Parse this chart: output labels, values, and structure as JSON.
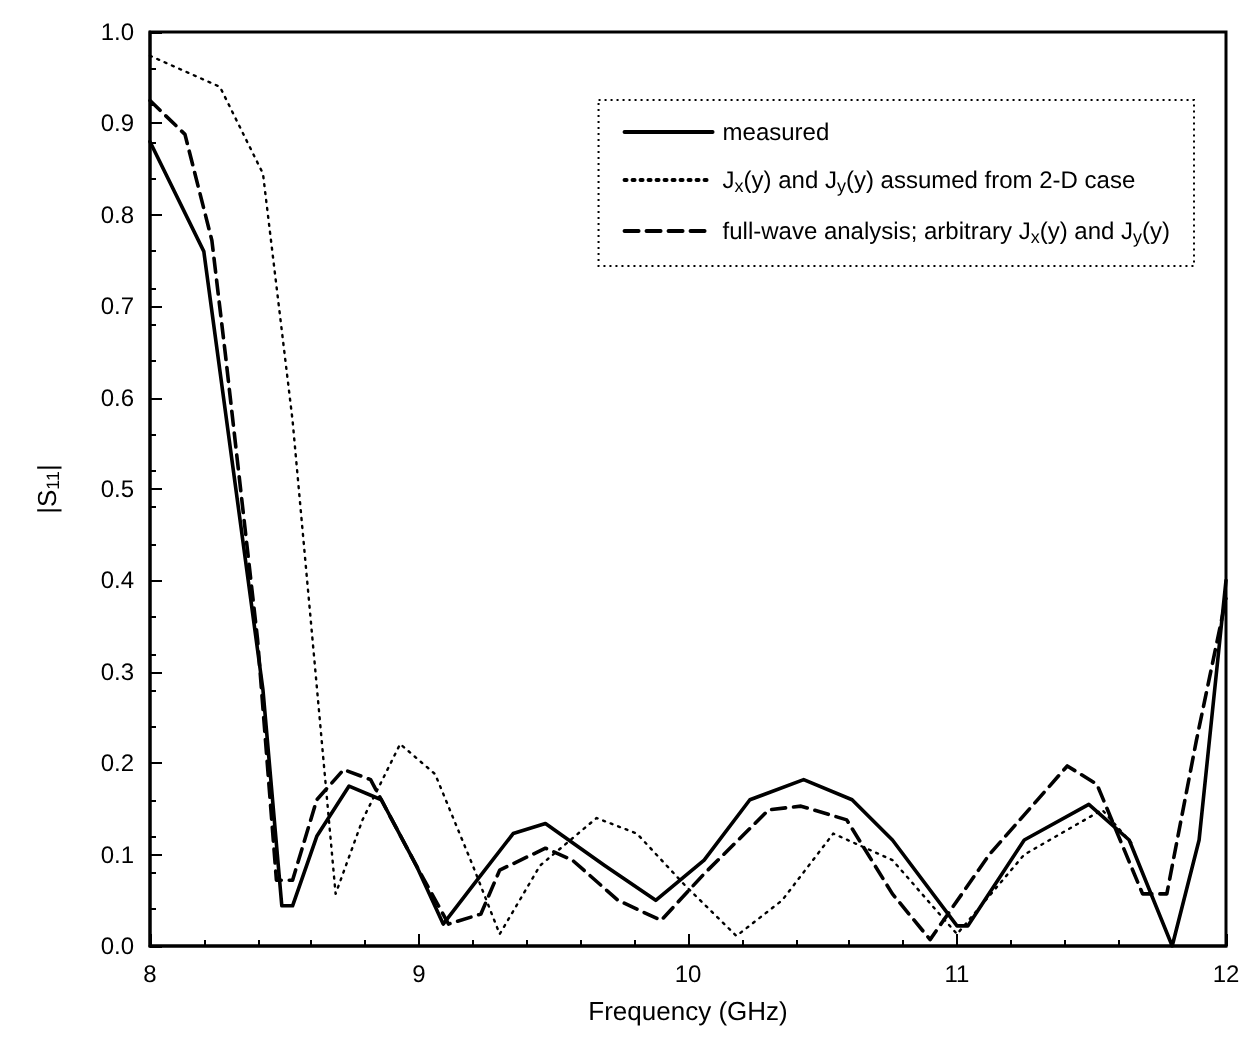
{
  "chart_data": {
    "type": "line",
    "xlabel": "Frequency (GHz)",
    "ylabel": "|S$_{11}$|",
    "xlim": [
      8,
      12
    ],
    "xticks": [
      8,
      9,
      10,
      11,
      12
    ],
    "ylim": [
      0,
      1
    ],
    "yticks": [
      {
        "value": 0,
        "label": "0.0"
      },
      0.1,
      0.2,
      0.3,
      0.4,
      0.5,
      0.6,
      0.7,
      0.8,
      0.9,
      {
        "value": 1,
        "label": "1.0"
      }
    ],
    "grid": false,
    "legend": "top right",
    "marker": "none",
    "series": [
      {
        "name": "measured",
        "color": "#000000",
        "line_style": "solid",
        "x": [
          8.0,
          8.2,
          8.31,
          8.42,
          8.49,
          8.53,
          8.62,
          8.74,
          8.86,
          8.99,
          9.09,
          9.2,
          9.35,
          9.47,
          9.69,
          9.88,
          10.06,
          10.23,
          10.43,
          10.61,
          10.76,
          11.0,
          11.04,
          11.25,
          11.49,
          11.64,
          11.8,
          11.9,
          12.0
        ],
        "values": [
          0.88,
          0.76,
          0.52,
          0.28,
          0.044,
          0.044,
          0.12,
          0.175,
          0.16,
          0.088,
          0.024,
          0.066,
          0.123,
          0.134,
          0.088,
          0.05,
          0.094,
          0.16,
          0.182,
          0.16,
          0.116,
          0.022,
          0.022,
          0.116,
          0.155,
          0.116,
          0.0,
          0.116,
          0.4
        ]
      },
      {
        "name": "J$_{x}$(y) and J$_{y}$(y) assumed from 2-D case",
        "color": "#000000",
        "line_style": "dotted",
        "x": [
          8.0,
          8.26,
          8.42,
          8.53,
          8.62,
          8.69,
          8.79,
          8.93,
          9.06,
          9.2,
          9.3,
          9.45,
          9.66,
          9.81,
          9.99,
          10.18,
          10.35,
          10.54,
          10.76,
          11.0,
          11.25,
          11.54,
          11.66
        ],
        "values": [
          0.974,
          0.94,
          0.845,
          0.575,
          0.284,
          0.057,
          0.138,
          0.221,
          0.188,
          0.088,
          0.013,
          0.088,
          0.14,
          0.123,
          0.066,
          0.011,
          0.05,
          0.123,
          0.094,
          0.013,
          0.1,
          0.149,
          0.109
        ]
      },
      {
        "name": "full-wave analysis; arbitrary J$_{x}$(y) and J$_{y}$(y)",
        "color": "#000000",
        "line_style": "dashed",
        "x": [
          8.0,
          8.13,
          8.23,
          8.28,
          8.4,
          8.47,
          8.53,
          8.62,
          8.72,
          8.82,
          8.99,
          9.11,
          9.23,
          9.3,
          9.47,
          9.57,
          9.74,
          9.9,
          10.06,
          10.3,
          10.42,
          10.59,
          10.76,
          10.9,
          11.12,
          11.41,
          11.52,
          11.69,
          11.78,
          11.89,
          12.0
        ],
        "values": [
          0.925,
          0.888,
          0.772,
          0.648,
          0.335,
          0.072,
          0.072,
          0.16,
          0.193,
          0.182,
          0.088,
          0.024,
          0.035,
          0.083,
          0.107,
          0.094,
          0.05,
          0.028,
          0.079,
          0.149,
          0.153,
          0.138,
          0.057,
          0.007,
          0.1,
          0.197,
          0.177,
          0.057,
          0.057,
          0.225,
          0.38
        ]
      }
    ]
  }
}
